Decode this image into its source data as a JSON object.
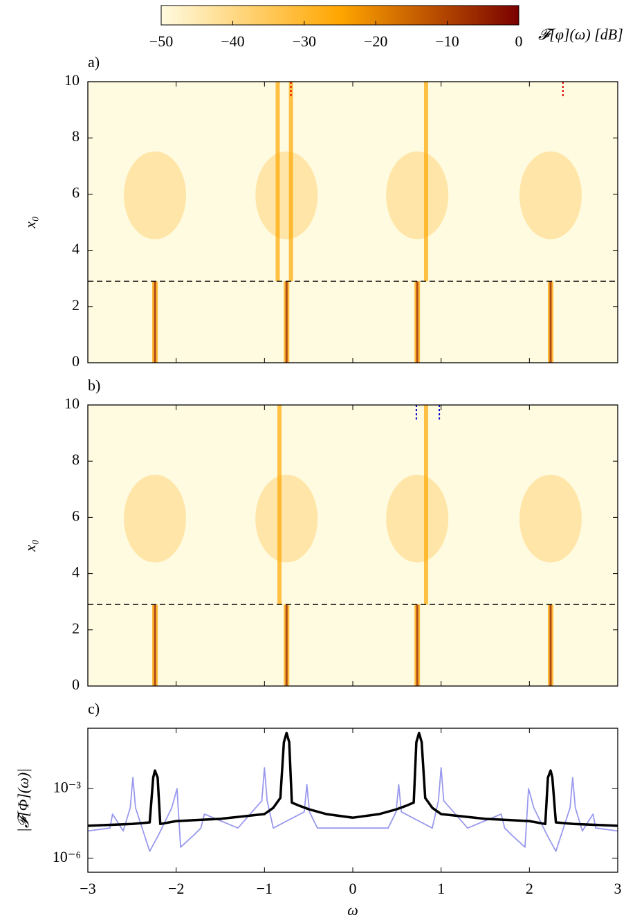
{
  "chart_data": [
    {
      "type": "heatmap",
      "panel_label": "a)",
      "ylabel": "x₀",
      "xlim": [
        -3,
        3
      ],
      "ylim": [
        0,
        10
      ],
      "xticks": [
        -3,
        -2,
        -1,
        0,
        1,
        2,
        3
      ],
      "yticks": [
        0,
        2,
        4,
        6,
        8,
        10
      ],
      "colormap": [
        "#fffbe0",
        "#ffa600",
        "#7a0000"
      ],
      "colorbar": {
        "label": "𝓕[φ](ω) [dB]",
        "lim": [
          -50,
          0
        ],
        "ticks": [
          {
            "value": -50,
            "label": "−50"
          },
          {
            "value": -40,
            "label": "−40"
          },
          {
            "value": -30,
            "label": "−30"
          },
          {
            "value": -20,
            "label": "−20"
          },
          {
            "value": -10,
            "label": "−10"
          },
          0
        ]
      },
      "threshold": 2.9,
      "markers": [
        -0.7,
        2.38
      ],
      "marker_color": "#e00000",
      "lower_ridges": [
        -2.24,
        -0.75,
        0.73,
        2.24
      ],
      "upper_ridges": [
        -0.85,
        -0.7,
        0.83
      ]
    },
    {
      "type": "heatmap",
      "panel_label": "b)",
      "ylabel": "x₀",
      "xlim": [
        -3,
        3
      ],
      "ylim": [
        0,
        10
      ],
      "xticks": [
        -3,
        -2,
        -1,
        0,
        1,
        2,
        3
      ],
      "yticks": [
        0,
        2,
        4,
        6,
        8,
        10
      ],
      "colormap": [
        "#fffbe0",
        "#ffa600",
        "#7a0000"
      ],
      "threshold": 2.9,
      "markers": [
        0.72,
        0.98
      ],
      "marker_color": "#0000d0",
      "lower_ridges": [
        -2.24,
        -0.75,
        0.73,
        2.24
      ],
      "upper_ridges": [
        -0.83,
        0.83
      ]
    },
    {
      "type": "line",
      "panel_label": "c)",
      "xlabel": "ω",
      "ylabel": "|𝓕[Φ](ω)|",
      "log_y": true,
      "xlim": [
        -3,
        3
      ],
      "ylim": [
        2.5e-07,
        0.4
      ],
      "xticks": [
        {
          "value": -3,
          "label": "−3"
        },
        {
          "value": -2,
          "label": "−2"
        },
        {
          "value": -1,
          "label": "−1"
        },
        0,
        1,
        2,
        3
      ],
      "yticks": [
        {
          "value": 0.001,
          "label": "10⁻³"
        },
        {
          "value": 1e-06,
          "label": "10⁻⁶"
        }
      ],
      "series": [
        {
          "color": "#9999ee",
          "width": 1.8,
          "x": [
            -3,
            -2.75,
            -2.72,
            -2.6,
            -2.52,
            -2.49,
            -2.46,
            -2.3,
            -2.2,
            -2.05,
            -1.99,
            -1.95,
            -1.8,
            -1.72,
            -1.68,
            -1.3,
            -1.03,
            -1,
            -0.97,
            -0.9,
            -0.55,
            -0.52,
            -0.49,
            -0.4,
            0,
            0.4,
            0.49,
            0.52,
            0.55,
            0.9,
            0.97,
            1,
            1.03,
            1.3,
            1.68,
            1.72,
            1.8,
            1.95,
            1.99,
            2.05,
            2.2,
            2.3,
            2.46,
            2.49,
            2.52,
            2.6,
            2.72,
            2.75,
            3
          ],
          "values": [
            1.5e-05,
            2e-05,
            8e-05,
            1.5e-05,
            0.00015,
            0.003,
            0.00015,
            2e-06,
            1e-05,
            0.00015,
            0.001,
            3e-06,
            1e-05,
            2e-05,
            8e-05,
            2e-05,
            0.0003,
            0.008,
            0.0003,
            2e-05,
            0.0001,
            0.0015,
            0.0001,
            2e-05,
            2e-05,
            2e-05,
            0.0001,
            0.0015,
            0.0001,
            2e-05,
            0.0003,
            0.008,
            0.0003,
            2e-05,
            8e-05,
            2e-05,
            1e-05,
            3e-06,
            0.001,
            0.00015,
            1e-05,
            2e-06,
            0.00015,
            0.003,
            0.00015,
            1.5e-05,
            8e-05,
            2e-05,
            1.5e-05
          ]
        },
        {
          "color": "#000000",
          "width": 3.5,
          "x": [
            -3,
            -2.5,
            -2.3,
            -2.26,
            -2.24,
            -2.21,
            -2.18,
            -2,
            -1.5,
            -1,
            -0.9,
            -0.82,
            -0.78,
            -0.75,
            -0.72,
            -0.69,
            -0.6,
            -0.5,
            -0.3,
            0,
            0.3,
            0.5,
            0.6,
            0.69,
            0.72,
            0.75,
            0.78,
            0.82,
            0.9,
            1,
            1.5,
            2,
            2.18,
            2.21,
            2.24,
            2.26,
            2.3,
            2.5,
            3
          ],
          "values": [
            2.5e-05,
            3e-05,
            3.5e-05,
            0.003,
            0.006,
            0.003,
            3e-05,
            4e-05,
            5e-05,
            8e-05,
            0.00015,
            0.0004,
            0.1,
            0.25,
            0.1,
            0.00025,
            0.00018,
            0.00013,
            8e-05,
            5.6e-05,
            8e-05,
            0.00013,
            0.00018,
            0.00025,
            0.1,
            0.25,
            0.1,
            0.0004,
            0.00015,
            8e-05,
            5e-05,
            4e-05,
            3e-05,
            0.003,
            0.006,
            0.003,
            3.5e-05,
            3e-05,
            2.5e-05
          ]
        }
      ]
    }
  ]
}
